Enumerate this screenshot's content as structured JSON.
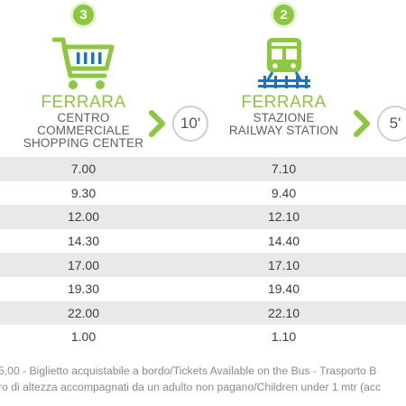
{
  "stops": [
    {
      "number": "3",
      "city": "FERRARA",
      "line1": "CENTRO COMMERCIALE",
      "line2": "SHOPPING CENTER",
      "icon": "shopping-cart-icon",
      "travel_time": "10'"
    },
    {
      "number": "2",
      "city": "FERRARA",
      "line1": "STAZIONE",
      "line2": "RAILWAY STATION",
      "icon": "train-icon",
      "travel_time": "5'"
    }
  ],
  "schedule": {
    "columns": [
      "stop-3",
      "stop-2"
    ],
    "rows": [
      [
        "7.00",
        "7.10"
      ],
      [
        "9.30",
        "9.40"
      ],
      [
        "12.00",
        "12.10"
      ],
      [
        "14.30",
        "14.40"
      ],
      [
        "17.00",
        "17.10"
      ],
      [
        "19.30",
        "19.40"
      ],
      [
        "22.00",
        "22.10"
      ],
      [
        "1.00",
        "1.10"
      ]
    ]
  },
  "notes": {
    "line1": "5,00 - Biglietto acquistabile a bordo/Tickets Available on the Bus - Trasporto B",
    "line2": "ro di altezza accompagnati da un adulto non pagano/Children under 1 mtr (acc"
  },
  "colors": {
    "accent": "#8dc63f",
    "row_shade": "#e9e9ea",
    "rail_blue": "#1c75bc"
  }
}
